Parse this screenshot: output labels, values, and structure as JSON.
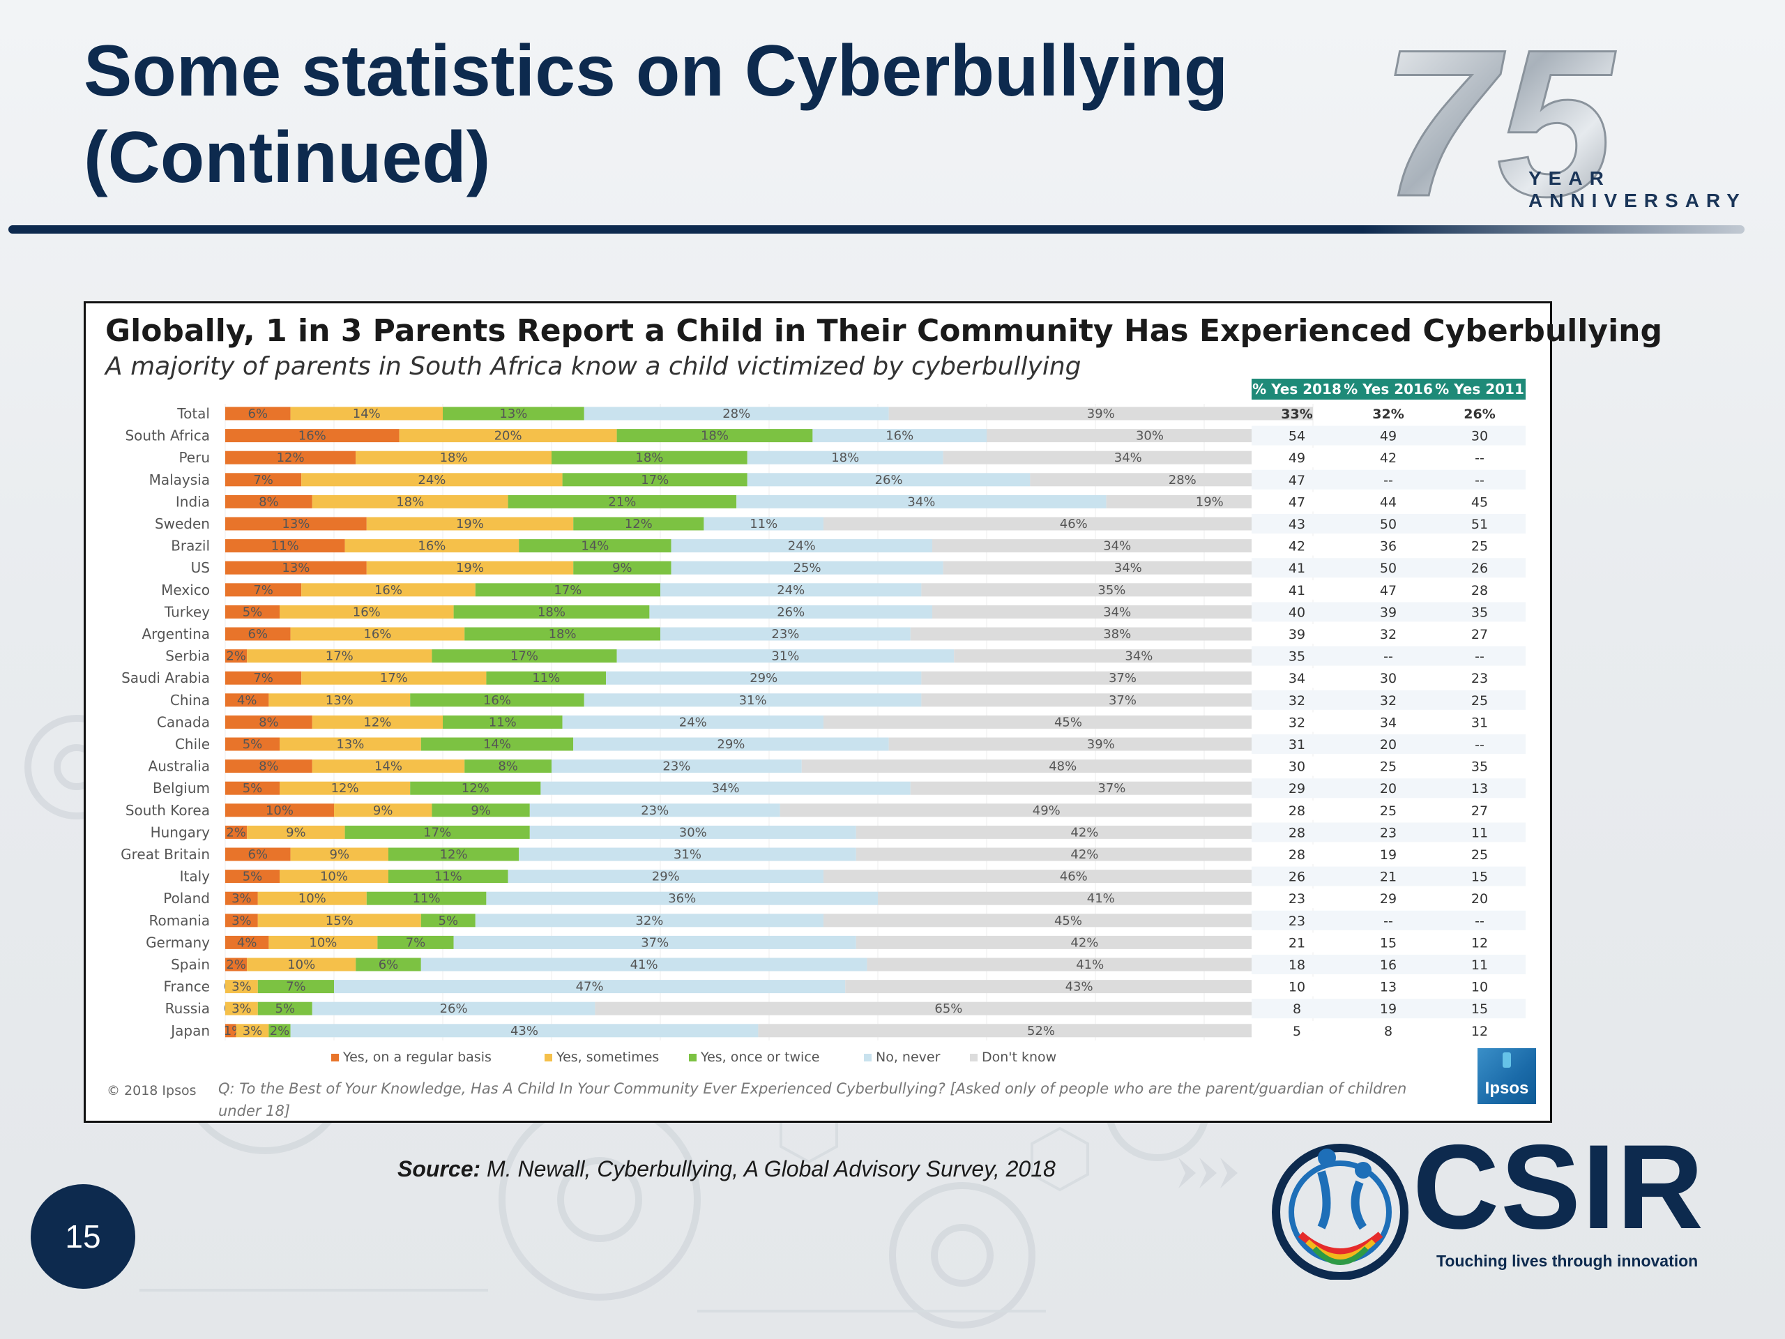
{
  "slide": {
    "title_line1": "Some statistics on Cyberbullying",
    "title_line2": "(Continued)",
    "anniversary": {
      "number": "75",
      "word1": "YEAR",
      "word2": "ANNIVERSARY"
    },
    "source_label": "Source:",
    "source_text": " M. Newall, Cyberbullying, A Global Advisory Survey, 2018",
    "page_number": "15",
    "csir": {
      "name": "CSIR",
      "tagline": "Touching lives through innovation"
    },
    "colors": {
      "navy": "#0d2a4e"
    }
  },
  "chart_panel": {
    "copyright": "© 2018 Ipsos",
    "question": "Q: To the Best of Your Knowledge, Has A Child In Your Community Ever Experienced Cyberbullying? [Asked only of people who are the parent/guardian of children under 18]",
    "logo_text": "Ipsos"
  },
  "chart_data": {
    "type": "bar",
    "orientation": "horizontal",
    "stacked": true,
    "title": "Globally, 1 in 3 Parents Report a Child in Their Community Has Experienced Cyberbullying",
    "subtitle": "A majority of parents in South Africa know a child victimized by cyberbullying",
    "categories": [
      "Total",
      "South Africa",
      "Peru",
      "Malaysia",
      "India",
      "Sweden",
      "Brazil",
      "US",
      "Mexico",
      "Turkey",
      "Argentina",
      "Serbia",
      "Saudi Arabia",
      "China",
      "Canada",
      "Chile",
      "Australia",
      "Belgium",
      "South Korea",
      "Hungary",
      "Great Britain",
      "Italy",
      "Poland",
      "Romania",
      "Germany",
      "Spain",
      "France",
      "Russia",
      "Japan"
    ],
    "series": [
      {
        "name": "Yes, on a regular basis",
        "color": "#e8742a",
        "values": [
          6,
          16,
          12,
          7,
          8,
          13,
          11,
          13,
          7,
          5,
          6,
          2,
          7,
          4,
          8,
          5,
          8,
          5,
          10,
          2,
          6,
          5,
          3,
          3,
          4,
          2,
          0,
          0,
          1
        ],
        "labels": [
          "6%",
          "16%",
          "12%",
          "7%",
          "8%",
          "13%",
          "11%",
          "13%",
          "7%",
          "5%",
          "6%",
          "2%",
          "7%",
          "4%",
          "8%",
          "5%",
          "8%",
          "5%",
          "10%",
          "2%",
          "6%",
          "5%",
          "3%",
          "3%",
          "4%",
          "2%",
          "0%",
          "0%",
          "1%"
        ]
      },
      {
        "name": "Yes, sometimes",
        "color": "#f5c04a",
        "values": [
          14,
          20,
          18,
          24,
          18,
          19,
          16,
          19,
          16,
          16,
          16,
          17,
          17,
          13,
          12,
          13,
          14,
          12,
          9,
          9,
          9,
          10,
          10,
          15,
          10,
          10,
          3,
          3,
          3
        ],
        "labels": [
          "14%",
          "20%",
          "18%",
          "24%",
          "18%",
          "19%",
          "16%",
          "19%",
          "16%",
          "16%",
          "16%",
          "17%",
          "17%",
          "13%",
          "12%",
          "13%",
          "14%",
          "12%",
          "9%",
          "9%",
          "9%",
          "10%",
          "10%",
          "15%",
          "10%",
          "10%",
          "3%",
          "3%",
          "3%"
        ]
      },
      {
        "name": "Yes, once or twice",
        "color": "#7cc242",
        "values": [
          13,
          18,
          18,
          17,
          21,
          12,
          14,
          9,
          17,
          18,
          18,
          17,
          11,
          16,
          11,
          14,
          8,
          12,
          9,
          17,
          12,
          11,
          11,
          5,
          7,
          6,
          7,
          5,
          2
        ],
        "labels": [
          "13%",
          "18%",
          "18%",
          "17%",
          "21%",
          "12%",
          "14%",
          "9%",
          "17%",
          "18%",
          "18%",
          "17%",
          "11%",
          "16%",
          "11%",
          "14%",
          "8%",
          "12%",
          "9%",
          "17%",
          "12%",
          "11%",
          "11%",
          "5%",
          "7%",
          "6%",
          "7%",
          "5%",
          "2%"
        ]
      },
      {
        "name": "No, never",
        "color": "#c9e2ee",
        "values": [
          28,
          16,
          18,
          26,
          34,
          11,
          24,
          25,
          24,
          26,
          23,
          31,
          29,
          31,
          24,
          29,
          23,
          34,
          23,
          30,
          31,
          29,
          36,
          32,
          37,
          41,
          47,
          26,
          43
        ],
        "labels": [
          "28%",
          "16%",
          "18%",
          "26%",
          "34%",
          "11%",
          "24%",
          "25%",
          "24%",
          "26%",
          "23%",
          "31%",
          "29%",
          "31%",
          "24%",
          "29%",
          "23%",
          "34%",
          "23%",
          "30%",
          "31%",
          "29%",
          "36%",
          "32%",
          "37%",
          "41%",
          "47%",
          "26%",
          "43%"
        ]
      },
      {
        "name": "Don't know",
        "color": "#dcdcdc",
        "values": [
          39,
          30,
          34,
          28,
          19,
          46,
          34,
          34,
          35,
          34,
          38,
          34,
          37,
          37,
          45,
          39,
          48,
          37,
          49,
          42,
          42,
          46,
          41,
          45,
          42,
          41,
          43,
          65,
          52
        ],
        "labels": [
          "39%",
          "30%",
          "34%",
          "28%",
          "19%",
          "46%",
          "34%",
          "34%",
          "35%",
          "34%",
          "38%",
          "34%",
          "37%",
          "37%",
          "45%",
          "39%",
          "48%",
          "37%",
          "49%",
          "42%",
          "42%",
          "46%",
          "41%",
          "45%",
          "42%",
          "41%",
          "43%",
          "65%",
          "52%"
        ]
      }
    ],
    "xlim": [
      0,
      100
    ],
    "legend_position": "bottom",
    "side_table": {
      "headers": [
        "% Yes 2018",
        "% Yes 2016",
        "% Yes 2011"
      ],
      "totals": [
        "33%",
        "32%",
        "26%"
      ],
      "header_color": "#1e8a78",
      "rows": [
        [
          "54",
          "49",
          "30"
        ],
        [
          "49",
          "42",
          "--"
        ],
        [
          "47",
          "--",
          "--"
        ],
        [
          "47",
          "44",
          "45"
        ],
        [
          "43",
          "50",
          "51"
        ],
        [
          "42",
          "36",
          "25"
        ],
        [
          "41",
          "50",
          "26"
        ],
        [
          "41",
          "47",
          "28"
        ],
        [
          "40",
          "39",
          "35"
        ],
        [
          "39",
          "32",
          "27"
        ],
        [
          "35",
          "--",
          "--"
        ],
        [
          "34",
          "30",
          "23"
        ],
        [
          "32",
          "32",
          "25"
        ],
        [
          "32",
          "34",
          "31"
        ],
        [
          "31",
          "20",
          "--"
        ],
        [
          "30",
          "25",
          "35"
        ],
        [
          "29",
          "20",
          "13"
        ],
        [
          "28",
          "25",
          "27"
        ],
        [
          "28",
          "23",
          "11"
        ],
        [
          "28",
          "19",
          "25"
        ],
        [
          "26",
          "21",
          "15"
        ],
        [
          "23",
          "29",
          "20"
        ],
        [
          "23",
          "--",
          "--"
        ],
        [
          "21",
          "15",
          "12"
        ],
        [
          "18",
          "16",
          "11"
        ],
        [
          "10",
          "13",
          "10"
        ],
        [
          "8",
          "19",
          "15"
        ],
        [
          "5",
          "8",
          "12"
        ]
      ]
    }
  }
}
